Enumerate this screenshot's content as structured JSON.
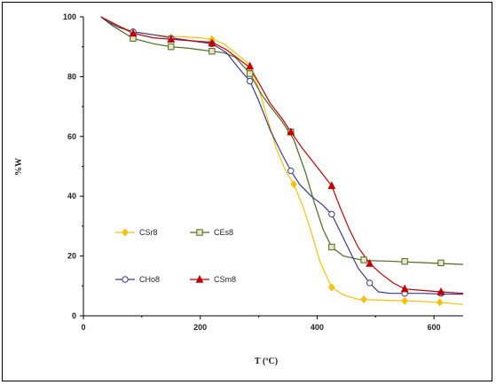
{
  "chart_data": {
    "type": "line",
    "title": "",
    "xlabel": "T (ºC)",
    "ylabel": "%W",
    "xlim": [
      0,
      650
    ],
    "ylim": [
      0,
      100
    ],
    "xticks": [
      0,
      200,
      400,
      600
    ],
    "yticks": [
      0,
      20,
      40,
      60,
      80,
      100
    ],
    "grid": false,
    "series": [
      {
        "name": "CSr8",
        "color": "#f4c20d",
        "marker": "diamond",
        "points": [
          [
            30,
            100
          ],
          [
            40,
            98.5
          ],
          [
            60,
            97
          ],
          [
            85,
            95
          ],
          [
            120,
            94
          ],
          [
            150,
            93.5
          ],
          [
            180,
            93.2
          ],
          [
            200,
            93
          ],
          [
            220,
            92.5
          ],
          [
            240,
            91
          ],
          [
            260,
            88
          ],
          [
            285,
            84
          ],
          [
            300,
            76
          ],
          [
            315,
            66
          ],
          [
            330,
            56
          ],
          [
            345,
            49
          ],
          [
            360,
            44
          ],
          [
            375,
            37
          ],
          [
            390,
            28
          ],
          [
            405,
            18
          ],
          [
            425,
            9.5
          ],
          [
            445,
            7
          ],
          [
            470,
            5.5
          ],
          [
            500,
            5.3
          ],
          [
            550,
            5
          ],
          [
            580,
            4.8
          ],
          [
            610,
            4.5
          ],
          [
            650,
            3.8
          ]
        ],
        "markers_at": [
          [
            85,
            95
          ],
          [
            150,
            93
          ],
          [
            220,
            92.5
          ],
          [
            285,
            83
          ],
          [
            360,
            44
          ],
          [
            425,
            9.5
          ],
          [
            480,
            5.5
          ],
          [
            550,
            5
          ],
          [
            610,
            4.5
          ]
        ]
      },
      {
        "name": "CEs8",
        "color": "#4a6b20",
        "marker": "square",
        "points": [
          [
            30,
            100
          ],
          [
            50,
            97
          ],
          [
            85,
            92.8
          ],
          [
            120,
            91
          ],
          [
            150,
            90
          ],
          [
            180,
            89.5
          ],
          [
            200,
            89
          ],
          [
            220,
            88.5
          ],
          [
            240,
            88
          ],
          [
            260,
            86.5
          ],
          [
            285,
            81
          ],
          [
            305,
            74
          ],
          [
            320,
            70
          ],
          [
            340,
            65
          ],
          [
            360,
            59
          ],
          [
            380,
            48
          ],
          [
            395,
            38
          ],
          [
            410,
            29
          ],
          [
            425,
            23
          ],
          [
            445,
            20
          ],
          [
            480,
            18.5
          ],
          [
            520,
            18.3
          ],
          [
            550,
            18
          ],
          [
            580,
            17.8
          ],
          [
            610,
            17.5
          ],
          [
            650,
            17.2
          ]
        ],
        "markers_at": [
          [
            85,
            92.8
          ],
          [
            150,
            90
          ],
          [
            220,
            88.5
          ],
          [
            285,
            81
          ],
          [
            355,
            61.5
          ],
          [
            425,
            23
          ],
          [
            480,
            18.7
          ],
          [
            550,
            18.2
          ],
          [
            612,
            17.7
          ]
        ]
      },
      {
        "name": "CHo8",
        "color": "#3a3a8c",
        "marker": "circle",
        "points": [
          [
            30,
            100
          ],
          [
            45,
            98
          ],
          [
            60,
            96.5
          ],
          [
            85,
            95
          ],
          [
            120,
            94
          ],
          [
            150,
            93
          ],
          [
            185,
            92
          ],
          [
            220,
            91
          ],
          [
            245,
            88
          ],
          [
            265,
            83
          ],
          [
            285,
            78.5
          ],
          [
            300,
            72
          ],
          [
            320,
            62
          ],
          [
            340,
            54
          ],
          [
            355,
            48.5
          ],
          [
            370,
            44
          ],
          [
            390,
            40
          ],
          [
            410,
            37
          ],
          [
            425,
            34
          ],
          [
            440,
            28
          ],
          [
            455,
            22
          ],
          [
            470,
            16
          ],
          [
            490,
            11
          ],
          [
            505,
            8
          ],
          [
            525,
            7.5
          ],
          [
            550,
            7.5
          ],
          [
            580,
            7.5
          ],
          [
            612,
            7.3
          ],
          [
            650,
            7.2
          ]
        ],
        "markers_at": [
          [
            85,
            95
          ],
          [
            150,
            92.8
          ],
          [
            220,
            91
          ],
          [
            285,
            78.5
          ],
          [
            355,
            48.5
          ],
          [
            425,
            34
          ],
          [
            490,
            11
          ],
          [
            550,
            7.5
          ],
          [
            612,
            7.5
          ]
        ]
      },
      {
        "name": "CSm8",
        "color": "#c00000",
        "marker": "triangle",
        "points": [
          [
            30,
            100
          ],
          [
            50,
            98
          ],
          [
            85,
            94.5
          ],
          [
            120,
            93
          ],
          [
            150,
            92.5
          ],
          [
            185,
            92
          ],
          [
            220,
            91.5
          ],
          [
            245,
            89
          ],
          [
            265,
            86
          ],
          [
            285,
            83
          ],
          [
            300,
            78
          ],
          [
            320,
            71
          ],
          [
            340,
            66
          ],
          [
            355,
            61.5
          ],
          [
            375,
            56
          ],
          [
            395,
            51
          ],
          [
            415,
            46
          ],
          [
            425,
            43.5
          ],
          [
            440,
            36
          ],
          [
            455,
            29
          ],
          [
            470,
            23
          ],
          [
            490,
            17.5
          ],
          [
            510,
            14
          ],
          [
            530,
            11
          ],
          [
            550,
            9
          ],
          [
            580,
            8.5
          ],
          [
            612,
            8
          ],
          [
            650,
            7.5
          ]
        ],
        "markers_at": [
          [
            85,
            94.5
          ],
          [
            150,
            92.5
          ],
          [
            220,
            91.2
          ],
          [
            285,
            83.5
          ],
          [
            355,
            61.5
          ],
          [
            425,
            43.5
          ],
          [
            490,
            17.5
          ],
          [
            550,
            9
          ],
          [
            612,
            8
          ]
        ]
      }
    ],
    "legend": {
      "placement": "inside-left",
      "entries": [
        "CSr8",
        "CEs8",
        "CHo8",
        "CSm8"
      ]
    }
  }
}
